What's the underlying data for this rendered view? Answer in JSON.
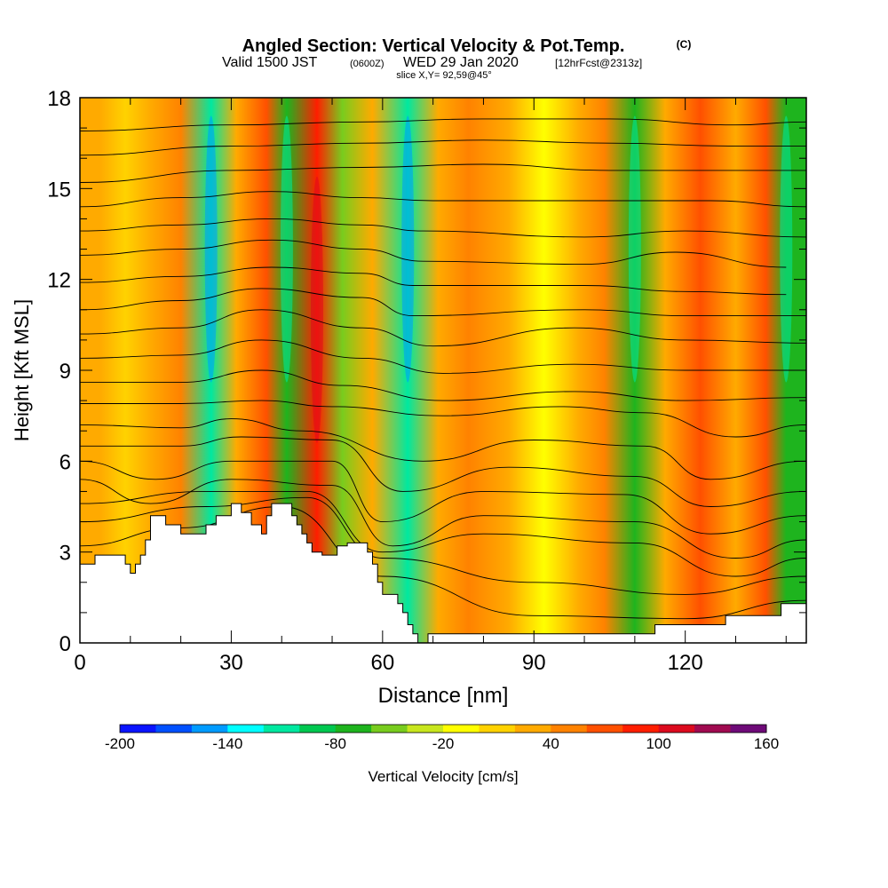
{
  "title": {
    "main": "Angled Section: Vertical Velocity & Pot.Temp.",
    "copyright": "(C)",
    "valid_prefix": "Valid 1500 JST",
    "valid_utc": "(0600Z)",
    "valid_date": "WED 29 Jan 2020",
    "forecast": "[12hrFcst@2313z]",
    "slice": "slice X,Y= 92,59@45°"
  },
  "chart_data": {
    "type": "heatmap",
    "xlabel": "Distance [nm]",
    "ylabel": "Height [Kft MSL]",
    "xlim": [
      0,
      144
    ],
    "ylim": [
      0,
      18
    ],
    "x_ticks": [
      0,
      30,
      60,
      90,
      120
    ],
    "y_ticks": [
      0,
      3,
      6,
      9,
      12,
      15,
      18
    ],
    "colorbar": {
      "label": "Vertical Velocity [cm/s]",
      "min": -200,
      "max": 160,
      "step": 20,
      "tick_labels": [
        -200,
        -140,
        -80,
        -20,
        40,
        100,
        160
      ],
      "colors": [
        "#0a14ff",
        "#0050ff",
        "#009bff",
        "#00ffff",
        "#00e8a0",
        "#00c850",
        "#1eb41e",
        "#78cc1e",
        "#c8e61e",
        "#ffff00",
        "#ffd200",
        "#ffaa00",
        "#ff8200",
        "#ff5000",
        "#ff1e00",
        "#dc0a1e",
        "#a00a50",
        "#6e0a78"
      ]
    },
    "velocity_bands_cm_s": [
      {
        "x": 4,
        "value": 30
      },
      {
        "x": 9,
        "value": 10
      },
      {
        "x": 14,
        "value": 20
      },
      {
        "x": 20,
        "value": 40
      },
      {
        "x": 26,
        "value": -120
      },
      {
        "x": 31,
        "value": 30
      },
      {
        "x": 37,
        "value": 60
      },
      {
        "x": 41,
        "value": -80
      },
      {
        "x": 47,
        "value": 80
      },
      {
        "x": 52,
        "value": -60
      },
      {
        "x": 58,
        "value": 20
      },
      {
        "x": 65,
        "value": -120
      },
      {
        "x": 71,
        "value": 20
      },
      {
        "x": 77,
        "value": 40
      },
      {
        "x": 85,
        "value": 30
      },
      {
        "x": 92,
        "value": -20
      },
      {
        "x": 99,
        "value": 30
      },
      {
        "x": 104,
        "value": 40
      },
      {
        "x": 110,
        "value": -80
      },
      {
        "x": 116,
        "value": 20
      },
      {
        "x": 123,
        "value": 70
      },
      {
        "x": 130,
        "value": 20
      },
      {
        "x": 136,
        "value": 60
      },
      {
        "x": 140,
        "value": -80
      }
    ],
    "theta_contours_kft": [
      {
        "label": "",
        "points": [
          [
            0,
            3.2
          ],
          [
            20,
            3.8
          ],
          [
            40,
            4.5
          ],
          [
            60,
            2.2
          ],
          [
            90,
            0.9
          ],
          [
            120,
            0.8
          ],
          [
            144,
            1.4
          ]
        ]
      },
      {
        "label": "",
        "points": [
          [
            0,
            4.0
          ],
          [
            25,
            4.5
          ],
          [
            45,
            4.8
          ],
          [
            60,
            2.8
          ],
          [
            90,
            2.0
          ],
          [
            120,
            1.6
          ],
          [
            144,
            2.2
          ]
        ]
      },
      {
        "label": "",
        "points": [
          [
            0,
            4.6
          ],
          [
            25,
            5.0
          ],
          [
            45,
            5.0
          ],
          [
            60,
            3.0
          ],
          [
            80,
            3.6
          ],
          [
            110,
            3.3
          ],
          [
            130,
            2.2
          ],
          [
            144,
            2.8
          ]
        ]
      },
      {
        "label": "",
        "points": [
          [
            0,
            5.4
          ],
          [
            14,
            4.6
          ],
          [
            30,
            5.4
          ],
          [
            50,
            5.2
          ],
          [
            62,
            3.2
          ],
          [
            80,
            4.2
          ],
          [
            110,
            4.0
          ],
          [
            130,
            2.8
          ],
          [
            144,
            3.4
          ]
        ]
      },
      {
        "label": "",
        "points": [
          [
            0,
            6.0
          ],
          [
            15,
            5.4
          ],
          [
            30,
            6.0
          ],
          [
            50,
            6.0
          ],
          [
            60,
            4.0
          ],
          [
            80,
            5.0
          ],
          [
            108,
            4.9
          ],
          [
            125,
            3.6
          ],
          [
            144,
            4.2
          ]
        ]
      },
      {
        "label": "",
        "points": [
          [
            0,
            6.5
          ],
          [
            20,
            6.5
          ],
          [
            32,
            6.8
          ],
          [
            50,
            6.7
          ],
          [
            64,
            5.0
          ],
          [
            85,
            5.8
          ],
          [
            110,
            5.5
          ],
          [
            125,
            4.5
          ],
          [
            144,
            5.0
          ]
        ]
      },
      {
        "label": "",
        "points": [
          [
            0,
            7.2
          ],
          [
            20,
            7.1
          ],
          [
            30,
            7.4
          ],
          [
            44,
            7.0
          ],
          [
            68,
            6.0
          ],
          [
            90,
            6.7
          ],
          [
            112,
            6.5
          ],
          [
            125,
            5.4
          ],
          [
            144,
            6.0
          ]
        ]
      },
      {
        "label": "",
        "points": [
          [
            0,
            7.9
          ],
          [
            20,
            7.9
          ],
          [
            36,
            8.0
          ],
          [
            50,
            7.8
          ],
          [
            72,
            7.5
          ],
          [
            95,
            7.8
          ],
          [
            112,
            7.6
          ],
          [
            130,
            6.8
          ],
          [
            144,
            7.2
          ]
        ]
      },
      {
        "label": "",
        "points": [
          [
            0,
            8.6
          ],
          [
            20,
            8.6
          ],
          [
            36,
            9.0
          ],
          [
            52,
            8.5
          ],
          [
            72,
            8.0
          ],
          [
            98,
            8.3
          ],
          [
            120,
            8.0
          ],
          [
            144,
            8.1
          ]
        ]
      },
      {
        "label": "",
        "points": [
          [
            0,
            9.4
          ],
          [
            20,
            9.5
          ],
          [
            36,
            10.0
          ],
          [
            56,
            9.4
          ],
          [
            72,
            8.9
          ],
          [
            98,
            9.2
          ],
          [
            120,
            9.0
          ],
          [
            144,
            9.0
          ]
        ]
      },
      {
        "label": "",
        "points": [
          [
            0,
            10.2
          ],
          [
            20,
            10.4
          ],
          [
            36,
            11.0
          ],
          [
            56,
            10.4
          ],
          [
            70,
            9.8
          ],
          [
            98,
            10.4
          ],
          [
            120,
            10.0
          ],
          [
            144,
            9.9
          ]
        ]
      },
      {
        "label": "",
        "points": [
          [
            0,
            11.0
          ],
          [
            20,
            11.3
          ],
          [
            36,
            11.7
          ],
          [
            56,
            11.4
          ],
          [
            66,
            10.8
          ],
          [
            100,
            11.0
          ],
          [
            120,
            10.8
          ],
          [
            144,
            10.8
          ]
        ]
      },
      {
        "label": "",
        "points": [
          [
            0,
            11.9
          ],
          [
            20,
            12.1
          ],
          [
            38,
            12.4
          ],
          [
            56,
            12.2
          ],
          [
            66,
            11.8
          ],
          [
            100,
            11.8
          ],
          [
            120,
            11.6
          ],
          [
            140,
            11.5
          ]
        ]
      },
      {
        "label": "",
        "points": [
          [
            0,
            12.8
          ],
          [
            20,
            13.0
          ],
          [
            38,
            13.3
          ],
          [
            56,
            13.0
          ],
          [
            68,
            12.6
          ],
          [
            100,
            12.5
          ],
          [
            118,
            12.9
          ],
          [
            140,
            12.4
          ]
        ]
      },
      {
        "label": "",
        "points": [
          [
            0,
            13.6
          ],
          [
            20,
            13.8
          ],
          [
            38,
            14.0
          ],
          [
            56,
            13.8
          ],
          [
            68,
            13.6
          ],
          [
            100,
            13.4
          ],
          [
            120,
            13.6
          ],
          [
            144,
            13.4
          ]
        ]
      },
      {
        "label": "",
        "points": [
          [
            0,
            14.4
          ],
          [
            20,
            14.7
          ],
          [
            38,
            14.9
          ],
          [
            56,
            14.7
          ],
          [
            70,
            14.6
          ],
          [
            105,
            14.6
          ],
          [
            125,
            14.6
          ],
          [
            144,
            14.4
          ]
        ]
      },
      {
        "label": "",
        "points": [
          [
            0,
            15.2
          ],
          [
            30,
            15.6
          ],
          [
            56,
            15.7
          ],
          [
            80,
            15.8
          ],
          [
            105,
            15.6
          ],
          [
            130,
            15.6
          ],
          [
            144,
            15.6
          ]
        ]
      },
      {
        "label": "",
        "points": [
          [
            0,
            16.1
          ],
          [
            30,
            16.4
          ],
          [
            56,
            16.5
          ],
          [
            80,
            16.6
          ],
          [
            105,
            16.5
          ],
          [
            130,
            16.4
          ],
          [
            144,
            16.4
          ]
        ]
      },
      {
        "label": "",
        "points": [
          [
            0,
            16.9
          ],
          [
            30,
            17.1
          ],
          [
            56,
            17.2
          ],
          [
            80,
            17.3
          ],
          [
            105,
            17.3
          ],
          [
            130,
            17.1
          ],
          [
            144,
            17.2
          ]
        ]
      }
    ],
    "terrain_kft": [
      [
        0,
        2.6
      ],
      [
        3,
        2.9
      ],
      [
        7,
        2.9
      ],
      [
        9,
        2.6
      ],
      [
        10,
        2.3
      ],
      [
        11,
        2.6
      ],
      [
        12,
        2.9
      ],
      [
        13,
        3.4
      ],
      [
        14,
        4.2
      ],
      [
        16,
        4.2
      ],
      [
        17,
        3.9
      ],
      [
        19,
        3.9
      ],
      [
        20,
        3.6
      ],
      [
        24,
        3.6
      ],
      [
        25,
        3.9
      ],
      [
        27,
        4.2
      ],
      [
        30,
        4.6
      ],
      [
        32,
        4.3
      ],
      [
        34,
        3.9
      ],
      [
        36,
        3.6
      ],
      [
        37,
        4.2
      ],
      [
        38,
        4.6
      ],
      [
        41,
        4.6
      ],
      [
        42,
        4.2
      ],
      [
        43,
        3.9
      ],
      [
        44,
        3.6
      ],
      [
        45,
        3.3
      ],
      [
        46,
        3.0
      ],
      [
        48,
        2.9
      ],
      [
        50,
        2.9
      ],
      [
        51,
        3.2
      ],
      [
        53,
        3.3
      ],
      [
        55,
        3.3
      ],
      [
        57,
        3.0
      ],
      [
        58,
        2.6
      ],
      [
        59,
        2.0
      ],
      [
        60,
        1.6
      ],
      [
        62,
        1.6
      ],
      [
        63,
        1.3
      ],
      [
        64,
        1.0
      ],
      [
        65,
        0.6
      ],
      [
        66,
        0.3
      ],
      [
        67,
        0.0
      ],
      [
        68,
        0.0
      ],
      [
        69,
        0.3
      ],
      [
        80,
        0.3
      ],
      [
        95,
        0.3
      ],
      [
        110,
        0.3
      ],
      [
        114,
        0.6
      ],
      [
        120,
        0.6
      ],
      [
        128,
        0.9
      ],
      [
        135,
        0.9
      ],
      [
        139,
        1.3
      ],
      [
        144,
        1.3
      ]
    ]
  }
}
